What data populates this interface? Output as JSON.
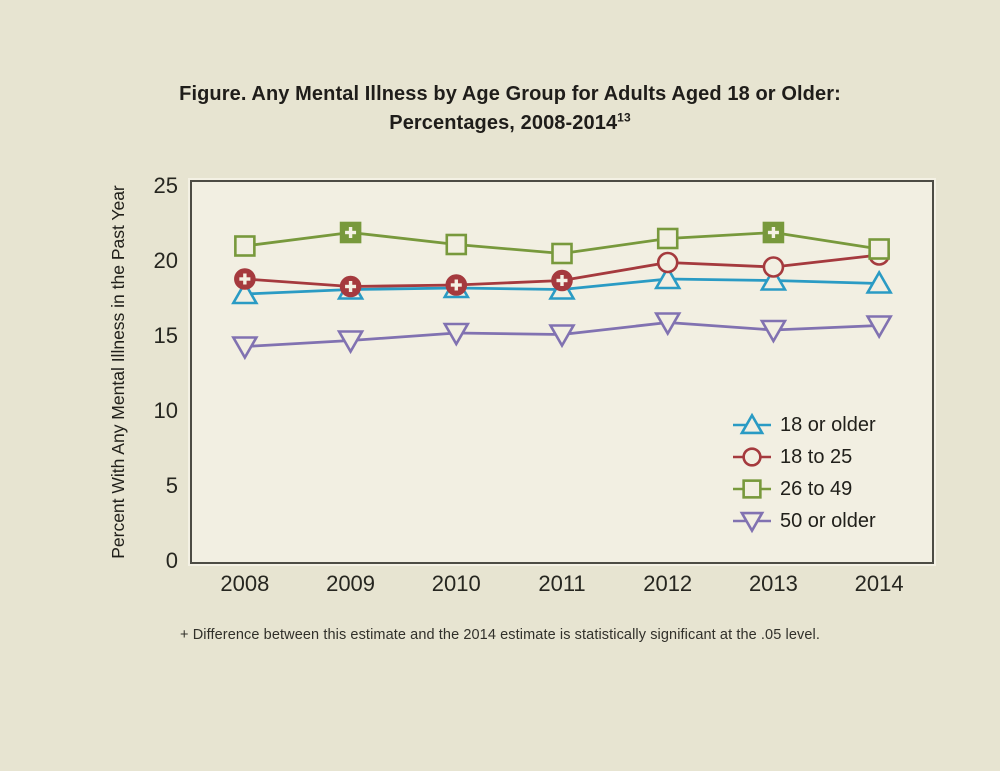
{
  "title": {
    "line1": "Figure. Any Mental Illness by Age Group for Adults Aged 18 or Older:",
    "line2": "Percentages, 2008-2014",
    "superscript": "13"
  },
  "footnote": "+ Difference between this estimate and the 2014 estimate is statistically significant at the .05 level.",
  "colors": {
    "page_background": "#e7e4d1",
    "plot_background": "#f2efe2",
    "frame": "#4d4c44",
    "series_18_or_older": "#2a9bc4",
    "series_18_to_25": "#a53a3e",
    "series_26_to_49": "#78993c",
    "series_50_or_older": "#8172b1",
    "marker_open_fill": "#f2efe2",
    "plus_glyph": "#f4f1e4"
  },
  "chart_data": {
    "type": "line",
    "title": "Figure. Any Mental Illness by Age Group for Adults Aged 18 or Older: Percentages, 2008-2014",
    "xlabel": "",
    "ylabel": "Percent With Any Mental Illness in the Past Year",
    "categories": [
      "2008",
      "2009",
      "2010",
      "2011",
      "2012",
      "2013",
      "2014"
    ],
    "ylim": [
      0,
      25
    ],
    "yticks": [
      0,
      5,
      10,
      15,
      20,
      25
    ],
    "grid": false,
    "legend_position": "inside-right",
    "plus_note": "Markers drawn filled with a + are significantly different from the 2014 estimate at the .05 level",
    "series": [
      {
        "name": "18 or older",
        "marker": "triangle-up",
        "color": "#2a9bc4",
        "values": [
          17.8,
          18.1,
          18.2,
          18.1,
          18.8,
          18.7,
          18.5
        ],
        "plus_years": []
      },
      {
        "name": "18 to 25",
        "marker": "circle",
        "color": "#a53a3e",
        "values": [
          18.8,
          18.3,
          18.4,
          18.7,
          19.9,
          19.6,
          20.4
        ],
        "plus_years": [
          "2008",
          "2009",
          "2010",
          "2011"
        ]
      },
      {
        "name": "26 to 49",
        "marker": "square",
        "color": "#78993c",
        "values": [
          21.0,
          21.9,
          21.1,
          20.5,
          21.5,
          21.9,
          20.8
        ],
        "plus_years": [
          "2009",
          "2013"
        ]
      },
      {
        "name": "50 or older",
        "marker": "triangle-down",
        "color": "#8172b1",
        "values": [
          14.3,
          14.7,
          15.2,
          15.1,
          15.9,
          15.4,
          15.7
        ],
        "plus_years": []
      }
    ]
  }
}
